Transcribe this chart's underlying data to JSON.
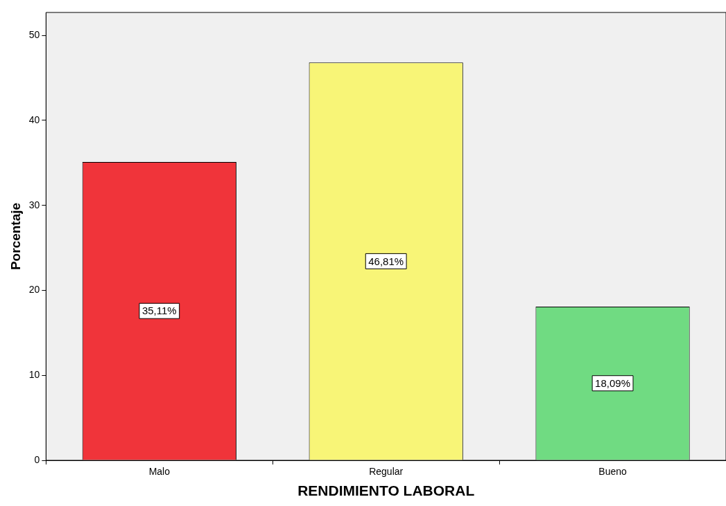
{
  "chart_data": {
    "type": "bar",
    "xlabel": "RENDIMIENTO LABORAL",
    "ylabel": "Porcentaje",
    "categories": [
      "Malo",
      "Regular",
      "Bueno"
    ],
    "values": [
      35.11,
      46.81,
      18.09
    ],
    "colors": [
      "#f0343a",
      "#f8f577",
      "#70db82"
    ],
    "value_labels": [
      "35,11%",
      "46,81%",
      "18,09%"
    ],
    "ylim": [
      0,
      52.7
    ],
    "yticks": [
      0,
      10,
      20,
      30,
      40,
      50
    ]
  }
}
